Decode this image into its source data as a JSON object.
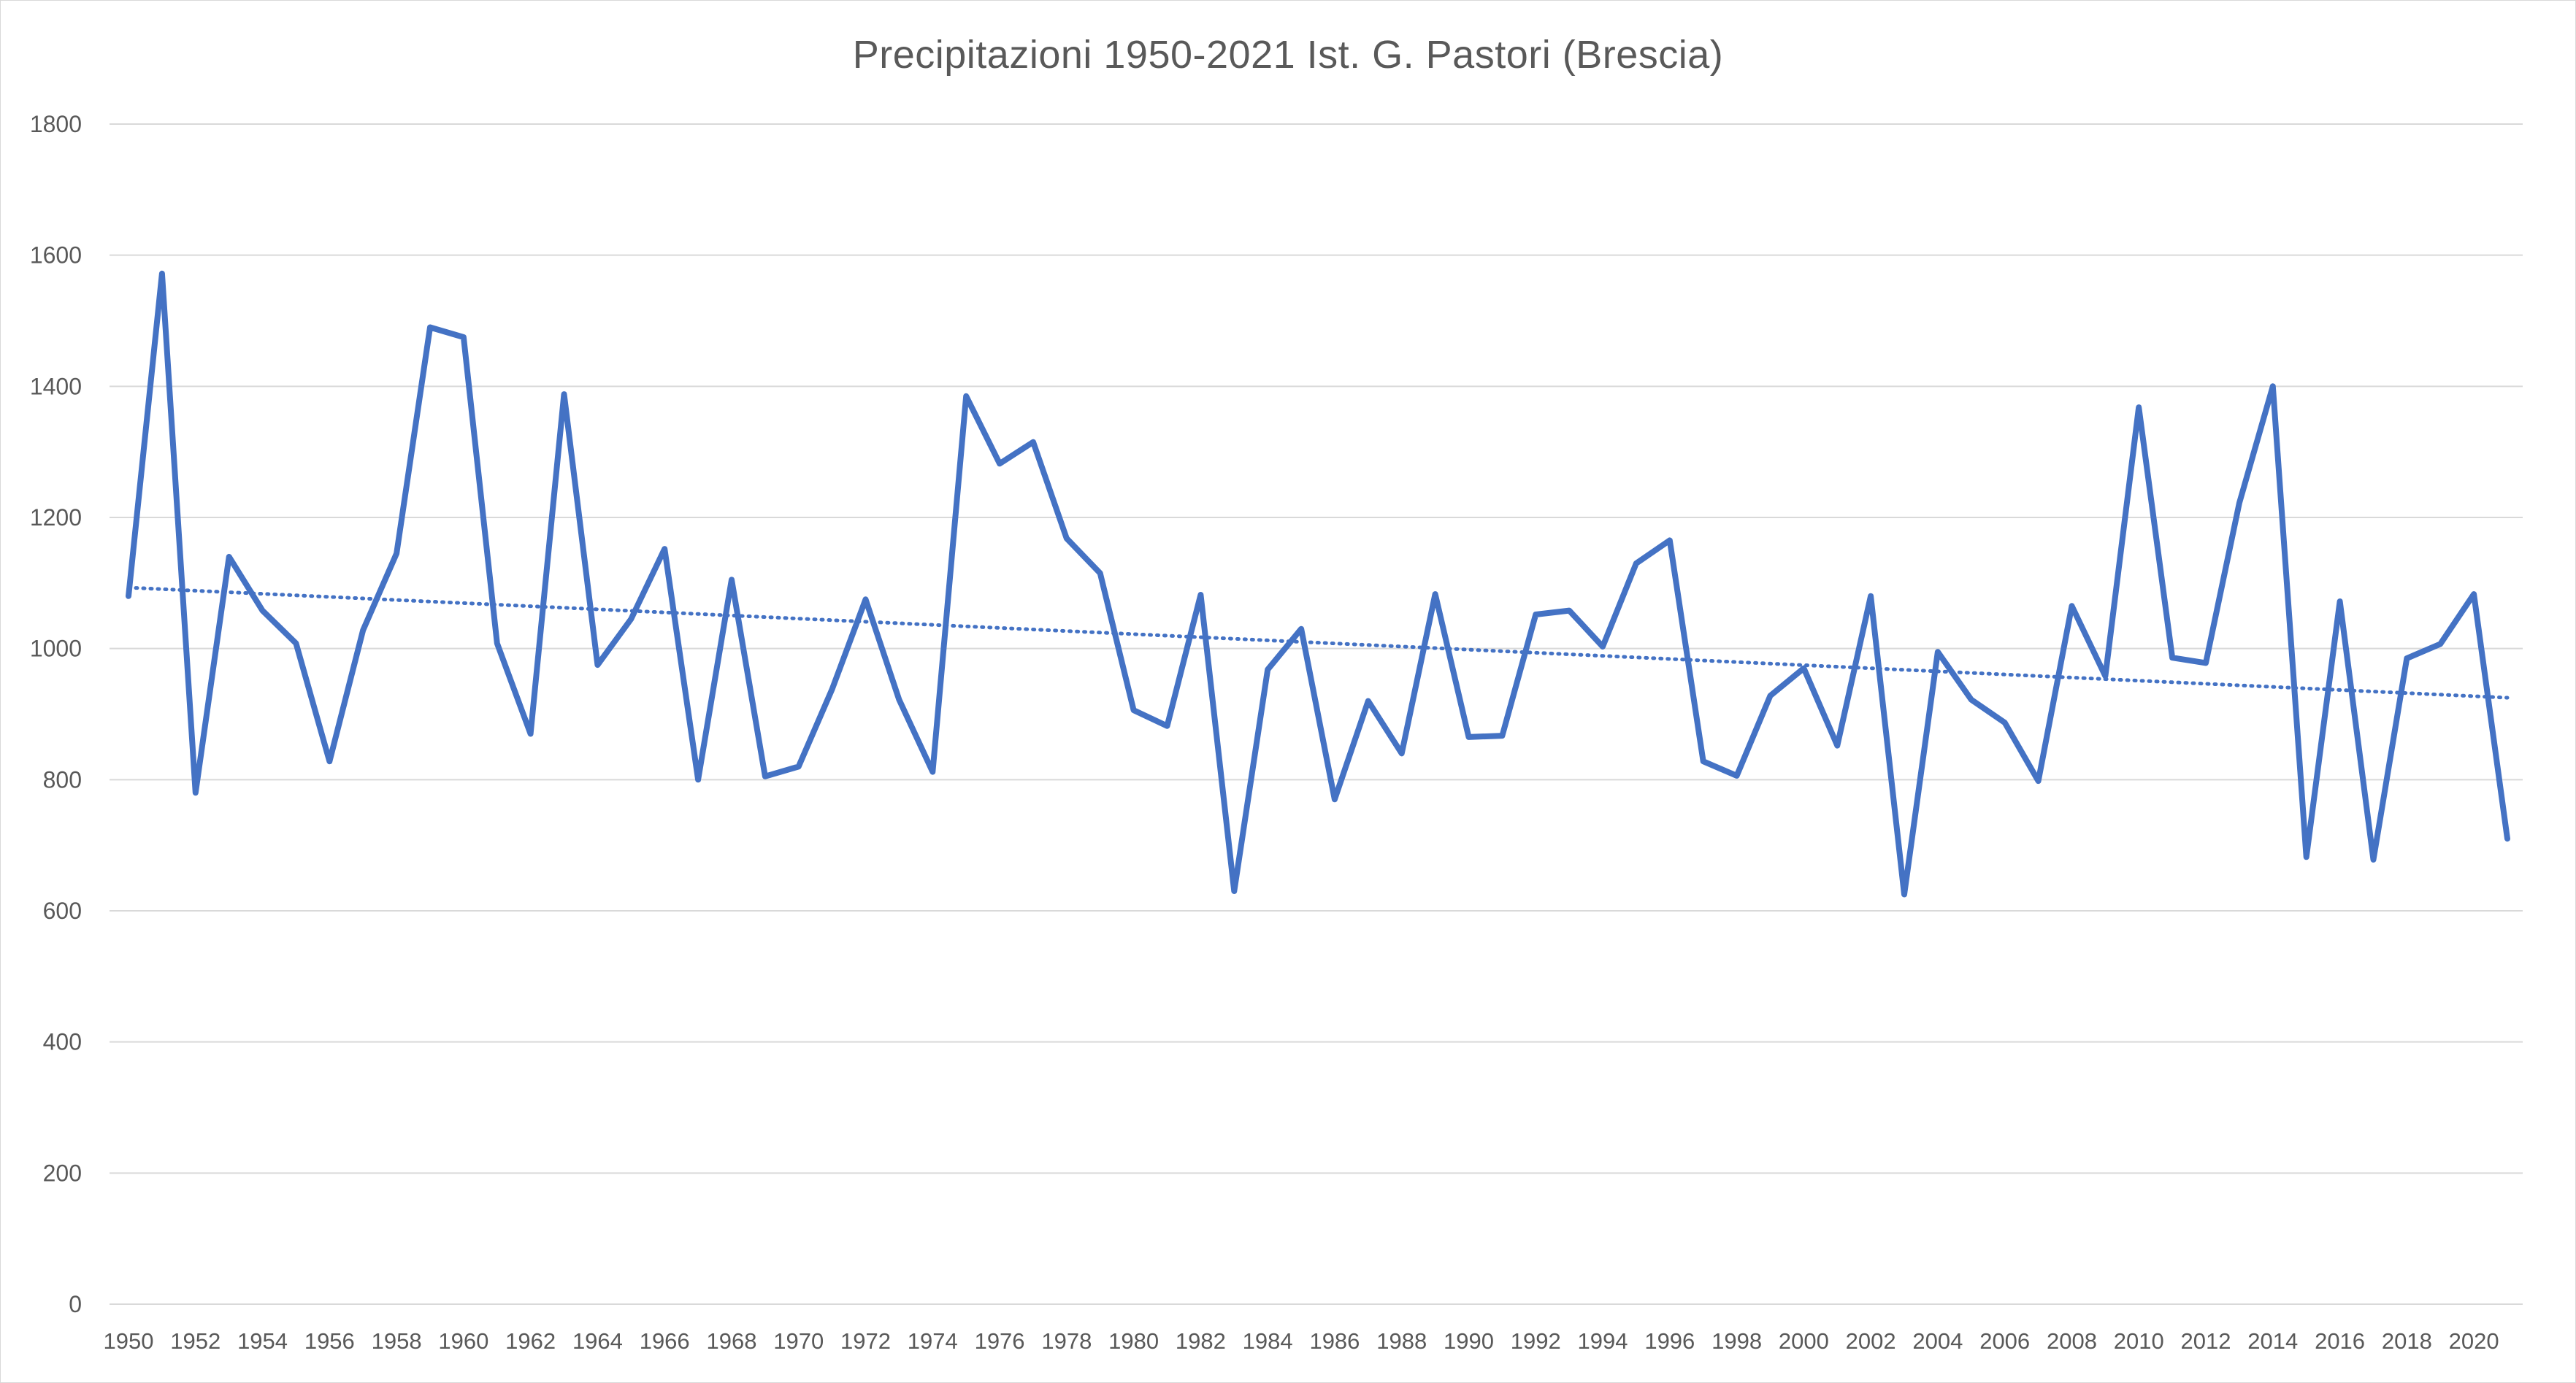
{
  "chart_data": {
    "type": "line",
    "title": "Precipitazioni 1950-2021 Ist. G. Pastori (Brescia)",
    "xlabel": "",
    "ylabel": "",
    "ylim": [
      0,
      1800
    ],
    "y_ticks": [
      0,
      200,
      400,
      600,
      800,
      1000,
      1200,
      1400,
      1600,
      1800
    ],
    "x_tick_labels": [
      "1950",
      "1952",
      "1954",
      "1956",
      "1958",
      "1960",
      "1962",
      "1964",
      "1966",
      "1968",
      "1970",
      "1972",
      "1974",
      "1976",
      "1978",
      "1980",
      "1982",
      "1984",
      "1986",
      "1988",
      "1990",
      "1992",
      "1994",
      "1996",
      "1998",
      "2000",
      "2002",
      "2004",
      "2006",
      "2008",
      "2010",
      "2012",
      "2014",
      "2016",
      "2018",
      "2020"
    ],
    "grid": true,
    "legend": "none",
    "x": [
      1950,
      1951,
      1952,
      1953,
      1954,
      1955,
      1956,
      1957,
      1958,
      1959,
      1960,
      1961,
      1962,
      1963,
      1964,
      1965,
      1966,
      1967,
      1968,
      1969,
      1970,
      1971,
      1972,
      1973,
      1974,
      1975,
      1976,
      1977,
      1978,
      1979,
      1980,
      1981,
      1982,
      1983,
      1984,
      1985,
      1986,
      1987,
      1988,
      1989,
      1990,
      1991,
      1992,
      1993,
      1994,
      1995,
      1996,
      1997,
      1998,
      1999,
      2000,
      2001,
      2002,
      2003,
      2004,
      2005,
      2006,
      2007,
      2008,
      2009,
      2010,
      2011,
      2012,
      2013,
      2014,
      2015,
      2016,
      2017,
      2018,
      2019,
      2020,
      2021
    ],
    "series": [
      {
        "line_style": "solid",
        "color": "#4472c4",
        "values": [
          1080,
          1572,
          780,
          1140,
          1058,
          1008,
          828,
          1028,
          1145,
          1490,
          1475,
          1008,
          870,
          1388,
          975,
          1045,
          1152,
          800,
          1105,
          805,
          820,
          938,
          1075,
          922,
          812,
          1385,
          1282,
          1315,
          1168,
          1115,
          906,
          882,
          1082,
          630,
          968,
          1030,
          770,
          920,
          840,
          1083,
          865,
          867,
          1052,
          1058,
          1003,
          1130,
          1165,
          828,
          806,
          928,
          970,
          852,
          1080,
          625,
          995,
          922,
          887,
          798,
          1065,
          958,
          1368,
          986,
          978,
          1222,
          1400,
          682,
          1072,
          678,
          985,
          1007,
          1083,
          710
        ]
      },
      {
        "line_style": "dotted",
        "color": "#4472c4",
        "trendline": "linear",
        "values_endpoints": [
          1093,
          925
        ]
      }
    ]
  }
}
